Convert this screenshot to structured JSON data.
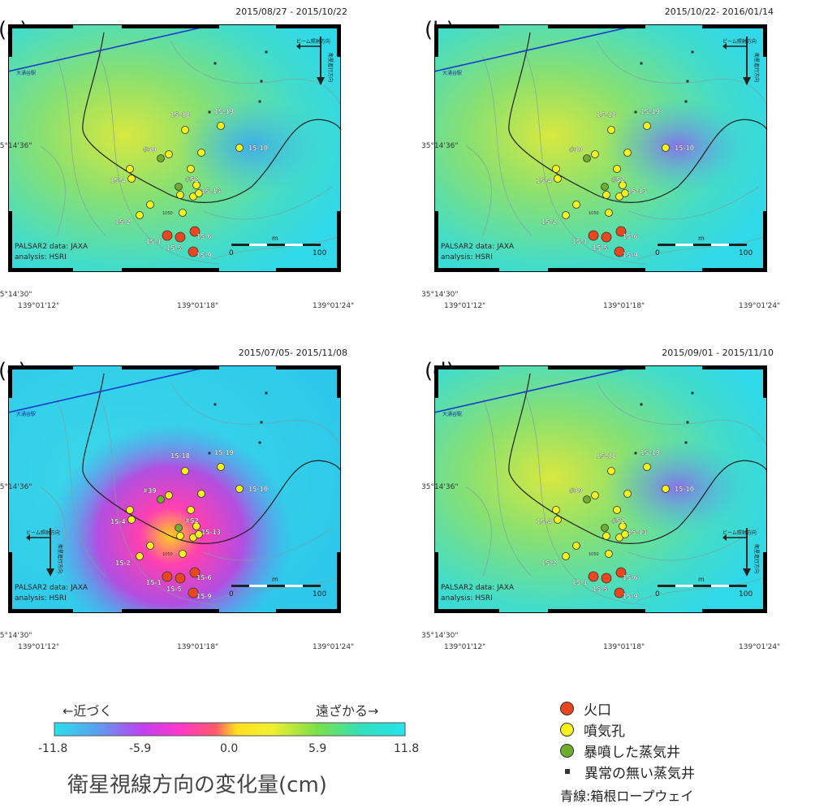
{
  "panels": [
    {
      "label": "(a)",
      "date": "2015/08/27 - 2015/10/22",
      "variant": "a"
    },
    {
      "label": "(b)",
      "date": "2015/10/22- 2016/01/14",
      "variant": "b"
    },
    {
      "label": "(c)",
      "date": "2015/07/05- 2015/11/08",
      "variant": "c"
    },
    {
      "label": "(d)",
      "date": "2015/09/01 - 2015/11/10",
      "variant": "d"
    }
  ],
  "map": {
    "credit_line1": "PALSAR2 data: JAXA",
    "credit_line2": "analysis: HSRI",
    "station_label": "大涌谷駅",
    "beam_label": "ビーム照射方向",
    "orbit_label": "衛星進行方向",
    "scale_unit": "m",
    "scale_min": "0",
    "scale_max": "100",
    "lat_ticks": [
      "35°14'36\"",
      "35°14'30\""
    ],
    "lon_ticks": [
      "139°01'12\"",
      "139°01'18\"",
      "139°01'24\""
    ],
    "contour_label": "1050",
    "vent_labels": [
      "15-18",
      "15-19",
      "15-10",
      "#39",
      "15-4",
      "#52",
      "15-13",
      "15-2",
      "15-1",
      "15-5",
      "15-6",
      "15-9"
    ]
  },
  "colorbar": {
    "approach_label": "←近づく",
    "recede_label": "遠ざかる→",
    "ticks": [
      "-11.8",
      "-5.9",
      "0.0",
      "5.9",
      "11.8"
    ],
    "title": "衛星視線方向の変化量(cm)"
  },
  "legend": {
    "crater": "火口",
    "fumarole": "噴気孔",
    "erupted_well": "暴噴した蒸気井",
    "normal_well": "異常の無い蒸気井",
    "ropeway": "青線:箱根ロープウェイ",
    "crater_color": "#e8461e",
    "fumarole_color": "#f6f21a",
    "erupted_color": "#6fae2c"
  }
}
